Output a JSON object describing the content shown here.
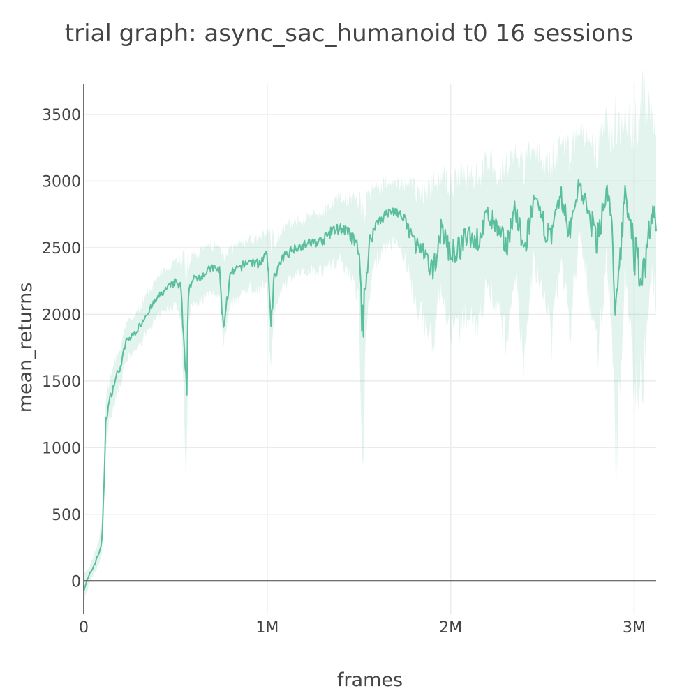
{
  "chart_data": {
    "type": "line",
    "title": "trial graph: async_sac_humanoid t0 16 sessions",
    "xlabel": "frames",
    "ylabel": "mean_returns",
    "xlim": [
      0,
      3120000
    ],
    "ylim": [
      -250,
      3730
    ],
    "x_ticks": [
      0,
      1000000,
      2000000,
      3000000
    ],
    "x_tick_labels": [
      "0",
      "1M",
      "2M",
      "3M"
    ],
    "y_ticks": [
      0,
      500,
      1000,
      1500,
      2000,
      2500,
      3000,
      3500
    ],
    "y_tick_labels": [
      "0",
      "500",
      "1000",
      "1500",
      "2000",
      "2500",
      "3000",
      "3500"
    ],
    "grid": true,
    "colors": {
      "line": "#5bbf9e",
      "band": "rgba(102,194,165,0.18)"
    },
    "series": [
      {
        "x": [
          0,
          30000,
          60000,
          80000,
          100000,
          110000,
          120000,
          130000,
          140000,
          160000,
          180000,
          200000,
          230000,
          260000,
          300000,
          340000,
          380000,
          420000,
          460000,
          500000,
          530000,
          550000,
          560000,
          570000,
          580000,
          600000,
          650000,
          700000,
          740000,
          760000,
          800000,
          850000,
          900000,
          950000,
          1000000,
          1020000,
          1040000,
          1060000,
          1100000,
          1150000,
          1200000,
          1250000,
          1300000,
          1350000,
          1400000,
          1450000,
          1500000,
          1520000,
          1540000,
          1560000,
          1600000,
          1650000,
          1700000,
          1750000,
          1800000,
          1850000,
          1900000,
          1950000,
          2000000,
          2050000,
          2100000,
          2150000,
          2200000,
          2250000,
          2300000,
          2350000,
          2400000,
          2450000,
          2500000,
          2550000,
          2600000,
          2650000,
          2700000,
          2750000,
          2800000,
          2850000,
          2880000,
          2900000,
          2950000,
          3000000,
          3050000,
          3100000,
          3120000
        ],
        "y": [
          -60,
          40,
          130,
          200,
          300,
          700,
          1200,
          1280,
          1350,
          1450,
          1550,
          1600,
          1800,
          1830,
          1900,
          2000,
          2080,
          2150,
          2200,
          2240,
          2200,
          1600,
          1380,
          2150,
          2230,
          2260,
          2300,
          2350,
          2330,
          1900,
          2300,
          2350,
          2400,
          2380,
          2450,
          1950,
          2300,
          2350,
          2450,
          2500,
          2520,
          2540,
          2550,
          2620,
          2650,
          2600,
          2480,
          1890,
          2300,
          2550,
          2700,
          2750,
          2780,
          2700,
          2550,
          2450,
          2300,
          2650,
          2450,
          2500,
          2600,
          2550,
          2750,
          2650,
          2500,
          2800,
          2450,
          2850,
          2700,
          2550,
          2900,
          2600,
          3000,
          2750,
          2550,
          2950,
          2650,
          1880,
          2950,
          2450,
          2300,
          2800,
          2700
        ],
        "upper": [
          40,
          100,
          220,
          300,
          450,
          900,
          1380,
          1450,
          1500,
          1600,
          1700,
          1720,
          1930,
          1960,
          2030,
          2150,
          2230,
          2300,
          2360,
          2410,
          2420,
          2400,
          2300,
          2380,
          2420,
          2440,
          2480,
          2520,
          2500,
          2460,
          2480,
          2530,
          2560,
          2560,
          2620,
          2580,
          2560,
          2580,
          2650,
          2700,
          2720,
          2740,
          2760,
          2850,
          2880,
          2870,
          2850,
          2800,
          2820,
          2880,
          2950,
          2980,
          3000,
          2960,
          2950,
          2920,
          2950,
          3050,
          2980,
          3000,
          3080,
          3050,
          3150,
          3100,
          3080,
          3180,
          3100,
          3250,
          3180,
          3150,
          3300,
          3200,
          3400,
          3250,
          3200,
          3450,
          3300,
          3400,
          3550,
          3350,
          3700,
          3400,
          3300
        ],
        "lower": [
          -160,
          -20,
          60,
          120,
          200,
          550,
          1020,
          1100,
          1200,
          1300,
          1400,
          1480,
          1650,
          1700,
          1760,
          1860,
          1940,
          2000,
          2040,
          2080,
          1950,
          1200,
          700,
          1900,
          2040,
          2080,
          2120,
          2160,
          2150,
          1800,
          2080,
          2150,
          2200,
          2180,
          2250,
          1550,
          2050,
          2120,
          2230,
          2300,
          2320,
          2340,
          2330,
          2390,
          2400,
          2320,
          2100,
          800,
          1900,
          2200,
          2420,
          2500,
          2550,
          2420,
          2150,
          1950,
          1800,
          2200,
          1850,
          1900,
          2050,
          1900,
          2250,
          2050,
          1800,
          2300,
          1600,
          2400,
          2150,
          1800,
          2450,
          1900,
          2600,
          2200,
          1700,
          2450,
          1900,
          720,
          2400,
          1500,
          1500,
          2300,
          2100
        ]
      }
    ]
  }
}
